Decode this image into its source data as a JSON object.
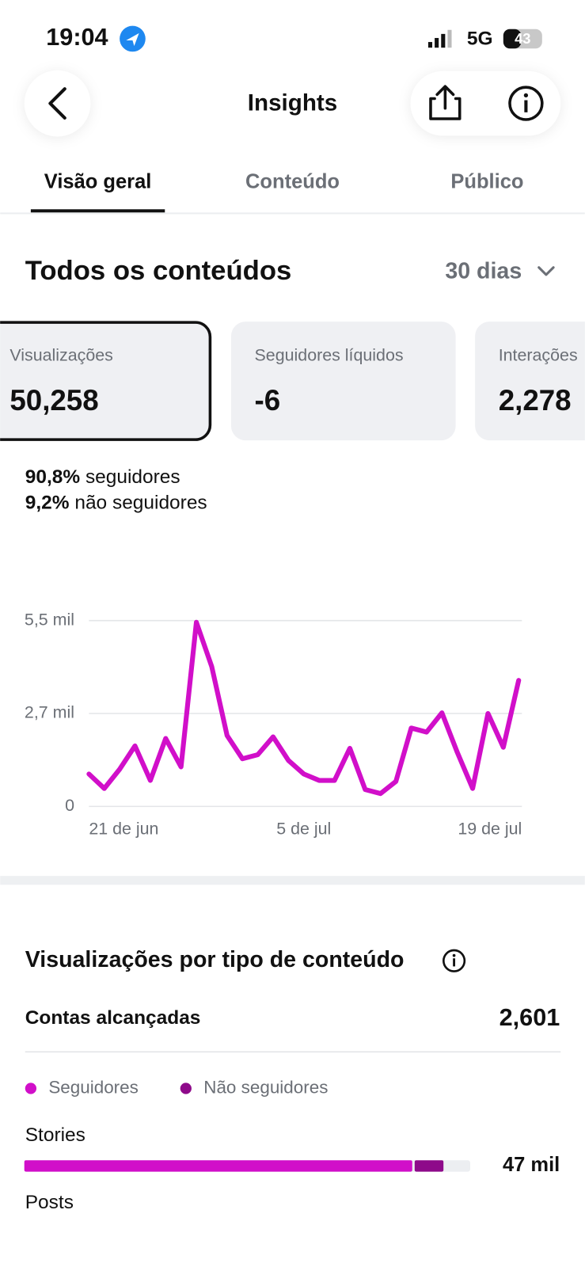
{
  "status_bar": {
    "time": "19:04",
    "network": "5G",
    "battery": "43"
  },
  "header": {
    "title": "Insights"
  },
  "tabs": [
    "Visão geral",
    "Conteúdo",
    "Público"
  ],
  "section": {
    "title": "Todos os conteúdos",
    "period": "30 dias"
  },
  "cards": [
    {
      "label": "Visualizações",
      "value": "50,258"
    },
    {
      "label": "Seguidores líquidos",
      "value": "-6"
    },
    {
      "label": "Interações",
      "value": "2,278"
    }
  ],
  "breakdown": [
    {
      "percent": "90,8%",
      "label": "seguidores"
    },
    {
      "percent": "9,2%",
      "label": "não seguidores"
    }
  ],
  "chart_data": {
    "type": "line",
    "categories": [
      "21 de jun",
      null,
      null,
      null,
      null,
      null,
      null,
      null,
      null,
      null,
      null,
      null,
      null,
      null,
      "5 de jul",
      null,
      null,
      null,
      null,
      null,
      null,
      null,
      null,
      null,
      null,
      null,
      null,
      null,
      "19 de jul"
    ],
    "series": [
      {
        "name": "Visualizações",
        "color": "#d10fc9",
        "values": [
          960,
          530,
          1100,
          1790,
          770,
          2010,
          1170,
          5450,
          4140,
          2100,
          1410,
          1530,
          2060,
          1360,
          960,
          770,
          770,
          1720,
          500,
          380,
          740,
          2320,
          2200,
          2770,
          1600,
          530,
          2750,
          1750,
          3730
        ]
      }
    ],
    "ylim": [
      0,
      5500
    ],
    "yticks": [
      0,
      {
        "value": 2750,
        "label": "2,7 mil"
      },
      {
        "value": 5500,
        "label": "5,5 mil"
      }
    ],
    "grid": true
  },
  "content_type": {
    "title": "Visualizações por tipo de conteúdo",
    "reach_label": "Contas alcançadas",
    "reach_value": "2,601",
    "legend": [
      {
        "name": "Seguidores",
        "color": "#d10fc9"
      },
      {
        "name": "Não seguidores",
        "color": "#8e0a8a"
      }
    ],
    "rows": [
      {
        "label": "Stories",
        "xlim": [
          0,
          50000
        ],
        "values": [
          43500,
          3500
        ],
        "total": 47000,
        "value_label": "47 mil"
      },
      {
        "label": "Posts"
      }
    ]
  }
}
